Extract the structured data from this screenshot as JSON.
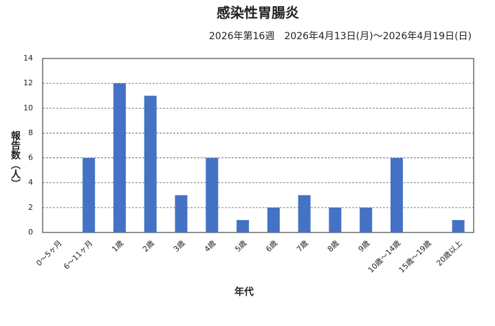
{
  "chart_data": {
    "type": "bar",
    "title": "感染性胃腸炎",
    "subtitle": "2026年第16週　2026年4月13日(月)～2026年4月19日(日)",
    "y_label": "報告数（人）",
    "x_label": "年代",
    "categories": [
      "0～5ヶ月",
      "6～11ヶ月",
      "1歳",
      "2歳",
      "3歳",
      "4歳",
      "5歳",
      "6歳",
      "7歳",
      "8歳",
      "9歳",
      "10歳～14歳",
      "15歳～19歳",
      "20歳以上"
    ],
    "values": [
      0,
      6,
      12,
      11,
      3,
      6,
      1,
      2,
      3,
      2,
      2,
      6,
      0,
      1
    ],
    "color": "#4472c4",
    "ylim": [
      0,
      14
    ],
    "yticks": [
      0,
      2,
      4,
      6,
      8,
      10,
      12,
      14
    ],
    "grid": true
  }
}
